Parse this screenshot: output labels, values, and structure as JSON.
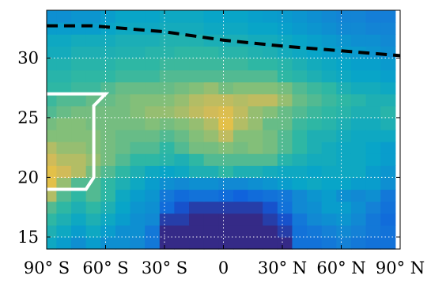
{
  "chart_data": {
    "type": "heatmap",
    "title": "",
    "xlabel": "",
    "ylabel": "",
    "x_ticks": [
      {
        "value": -90,
        "label": "90° S"
      },
      {
        "value": -60,
        "label": "60° S"
      },
      {
        "value": -30,
        "label": "30° S"
      },
      {
        "value": 0,
        "label": "0"
      },
      {
        "value": 30,
        "label": "30° N"
      },
      {
        "value": 60,
        "label": "60° N"
      },
      {
        "value": 90,
        "label": "90° N"
      }
    ],
    "y_ticks": [
      15,
      20,
      25,
      30
    ],
    "xlim": [
      -90,
      90
    ],
    "ylim": [
      14,
      34
    ],
    "grid": true,
    "colormap": [
      "#352a87",
      "#0f5cdd",
      "#1481d6",
      "#06a4ca",
      "#2eb7a4",
      "#87bf77",
      "#d1bb59",
      "#fec832",
      "#f9fb0e"
    ],
    "value_range": [
      0,
      1
    ],
    "x": [
      -88.75,
      -81.25,
      -73.75,
      -66.25,
      -58.75,
      -51.25,
      -43.75,
      -36.25,
      -28.75,
      -21.25,
      -13.75,
      -6.25,
      1.25,
      8.75,
      16.25,
      23.75,
      31.25,
      38.75,
      46.25,
      53.75,
      61.25,
      68.75,
      76.25,
      83.75
    ],
    "y": [
      14.5,
      15.5,
      16.5,
      17.5,
      18.5,
      19.5,
      20.5,
      21.5,
      22.5,
      23.5,
      24.5,
      25.5,
      26.5,
      27.5,
      28.5,
      29.5,
      30.5,
      31.5,
      32.5,
      33.5
    ],
    "z": [
      [
        0.4,
        0.35,
        0.3,
        0.35,
        0.3,
        0.3,
        0.28,
        0.22,
        0.0,
        0.0,
        0.0,
        0.0,
        0.0,
        0.0,
        0.0,
        0.0,
        0.0,
        0.2,
        0.2,
        0.22,
        0.25,
        0.22,
        0.2,
        0.2
      ],
      [
        0.45,
        0.4,
        0.35,
        0.4,
        0.35,
        0.3,
        0.3,
        0.22,
        0.0,
        0.0,
        0.0,
        0.0,
        0.0,
        0.0,
        0.0,
        0.0,
        0.05,
        0.2,
        0.22,
        0.25,
        0.28,
        0.25,
        0.22,
        0.2
      ],
      [
        0.5,
        0.45,
        0.4,
        0.45,
        0.4,
        0.35,
        0.3,
        0.28,
        0.05,
        0.05,
        0.0,
        0.0,
        0.0,
        0.0,
        0.0,
        0.05,
        0.1,
        0.22,
        0.28,
        0.3,
        0.32,
        0.28,
        0.22,
        0.18
      ],
      [
        0.55,
        0.5,
        0.45,
        0.5,
        0.45,
        0.38,
        0.32,
        0.3,
        0.18,
        0.1,
        0.05,
        0.05,
        0.05,
        0.05,
        0.05,
        0.1,
        0.2,
        0.28,
        0.3,
        0.35,
        0.35,
        0.3,
        0.25,
        0.2
      ],
      [
        0.7,
        0.55,
        0.5,
        0.55,
        0.5,
        0.4,
        0.35,
        0.32,
        0.22,
        0.18,
        0.2,
        0.2,
        0.18,
        0.15,
        0.18,
        0.2,
        0.22,
        0.28,
        0.32,
        0.35,
        0.3,
        0.28,
        0.3,
        0.22
      ],
      [
        0.8,
        0.65,
        0.55,
        0.55,
        0.5,
        0.45,
        0.4,
        0.35,
        0.3,
        0.28,
        0.3,
        0.3,
        0.28,
        0.28,
        0.3,
        0.32,
        0.35,
        0.38,
        0.4,
        0.38,
        0.38,
        0.35,
        0.35,
        0.3
      ],
      [
        0.8,
        0.75,
        0.7,
        0.6,
        0.55,
        0.5,
        0.45,
        0.4,
        0.38,
        0.4,
        0.45,
        0.45,
        0.5,
        0.45,
        0.45,
        0.42,
        0.4,
        0.4,
        0.38,
        0.4,
        0.4,
        0.4,
        0.35,
        0.32
      ],
      [
        0.75,
        0.7,
        0.7,
        0.65,
        0.6,
        0.55,
        0.5,
        0.5,
        0.48,
        0.45,
        0.5,
        0.55,
        0.55,
        0.55,
        0.55,
        0.55,
        0.48,
        0.45,
        0.42,
        0.42,
        0.4,
        0.4,
        0.38,
        0.35
      ],
      [
        0.7,
        0.65,
        0.65,
        0.62,
        0.6,
        0.58,
        0.55,
        0.55,
        0.5,
        0.55,
        0.6,
        0.6,
        0.62,
        0.6,
        0.62,
        0.6,
        0.55,
        0.5,
        0.45,
        0.42,
        0.4,
        0.4,
        0.38,
        0.35
      ],
      [
        0.62,
        0.62,
        0.62,
        0.62,
        0.6,
        0.58,
        0.58,
        0.58,
        0.55,
        0.58,
        0.62,
        0.65,
        0.72,
        0.62,
        0.62,
        0.6,
        0.55,
        0.5,
        0.45,
        0.45,
        0.42,
        0.4,
        0.4,
        0.4
      ],
      [
        0.6,
        0.62,
        0.62,
        0.6,
        0.6,
        0.6,
        0.6,
        0.62,
        0.6,
        0.62,
        0.65,
        0.7,
        0.8,
        0.7,
        0.65,
        0.58,
        0.58,
        0.52,
        0.5,
        0.48,
        0.45,
        0.42,
        0.42,
        0.45
      ],
      [
        0.55,
        0.58,
        0.6,
        0.6,
        0.6,
        0.6,
        0.62,
        0.65,
        0.65,
        0.68,
        0.72,
        0.75,
        0.78,
        0.72,
        0.65,
        0.62,
        0.58,
        0.55,
        0.52,
        0.5,
        0.48,
        0.45,
        0.45,
        0.48
      ],
      [
        0.52,
        0.55,
        0.55,
        0.58,
        0.58,
        0.6,
        0.62,
        0.62,
        0.62,
        0.65,
        0.7,
        0.72,
        0.72,
        0.7,
        0.72,
        0.72,
        0.65,
        0.58,
        0.55,
        0.52,
        0.5,
        0.48,
        0.45,
        0.45
      ],
      [
        0.5,
        0.5,
        0.52,
        0.52,
        0.55,
        0.58,
        0.58,
        0.58,
        0.58,
        0.6,
        0.62,
        0.65,
        0.6,
        0.62,
        0.62,
        0.62,
        0.6,
        0.55,
        0.52,
        0.5,
        0.45,
        0.42,
        0.42,
        0.4
      ],
      [
        0.48,
        0.48,
        0.5,
        0.5,
        0.5,
        0.52,
        0.52,
        0.52,
        0.55,
        0.55,
        0.55,
        0.55,
        0.55,
        0.55,
        0.55,
        0.55,
        0.5,
        0.48,
        0.45,
        0.42,
        0.4,
        0.38,
        0.38,
        0.36
      ],
      [
        0.46,
        0.46,
        0.48,
        0.48,
        0.48,
        0.5,
        0.5,
        0.5,
        0.52,
        0.52,
        0.52,
        0.52,
        0.52,
        0.52,
        0.5,
        0.5,
        0.48,
        0.45,
        0.42,
        0.4,
        0.38,
        0.36,
        0.36,
        0.34
      ],
      [
        0.42,
        0.42,
        0.45,
        0.45,
        0.45,
        0.46,
        0.46,
        0.48,
        0.48,
        0.5,
        0.5,
        0.5,
        0.48,
        0.48,
        0.46,
        0.45,
        0.42,
        0.4,
        0.38,
        0.36,
        0.35,
        0.34,
        0.32,
        0.3
      ],
      [
        0.4,
        0.4,
        0.42,
        0.42,
        0.42,
        0.44,
        0.44,
        0.44,
        0.46,
        0.46,
        0.46,
        0.44,
        0.44,
        0.44,
        0.42,
        0.42,
        0.4,
        0.38,
        0.36,
        0.34,
        0.32,
        0.3,
        0.3,
        0.28
      ],
      [
        0.35,
        0.35,
        0.35,
        0.35,
        0.38,
        0.4,
        0.4,
        0.4,
        0.42,
        0.42,
        0.42,
        0.4,
        0.4,
        0.4,
        0.38,
        0.38,
        0.36,
        0.34,
        0.32,
        0.3,
        0.28,
        0.28,
        0.26,
        0.26
      ],
      [
        0.3,
        0.3,
        0.32,
        0.32,
        0.35,
        0.38,
        0.38,
        0.38,
        0.4,
        0.4,
        0.4,
        0.38,
        0.38,
        0.38,
        0.36,
        0.35,
        0.34,
        0.32,
        0.3,
        0.28,
        0.26,
        0.26,
        0.24,
        0.24
      ]
    ],
    "overlays": [
      {
        "style": "dashed",
        "color": "#000000",
        "points": [
          [
            -90,
            32.7
          ],
          [
            -67,
            32.7
          ],
          [
            -30,
            32.2
          ],
          [
            0,
            31.5
          ],
          [
            30,
            31.0
          ],
          [
            60,
            30.6
          ],
          [
            90,
            30.2
          ]
        ]
      },
      {
        "style": "solid",
        "color": "#ffffff",
        "points": [
          [
            -90,
            27.0
          ],
          [
            -60,
            27.0
          ],
          [
            -66,
            26.0
          ],
          [
            -66,
            20.0
          ],
          [
            -70,
            19.0
          ],
          [
            -90,
            19.0
          ]
        ]
      }
    ]
  }
}
